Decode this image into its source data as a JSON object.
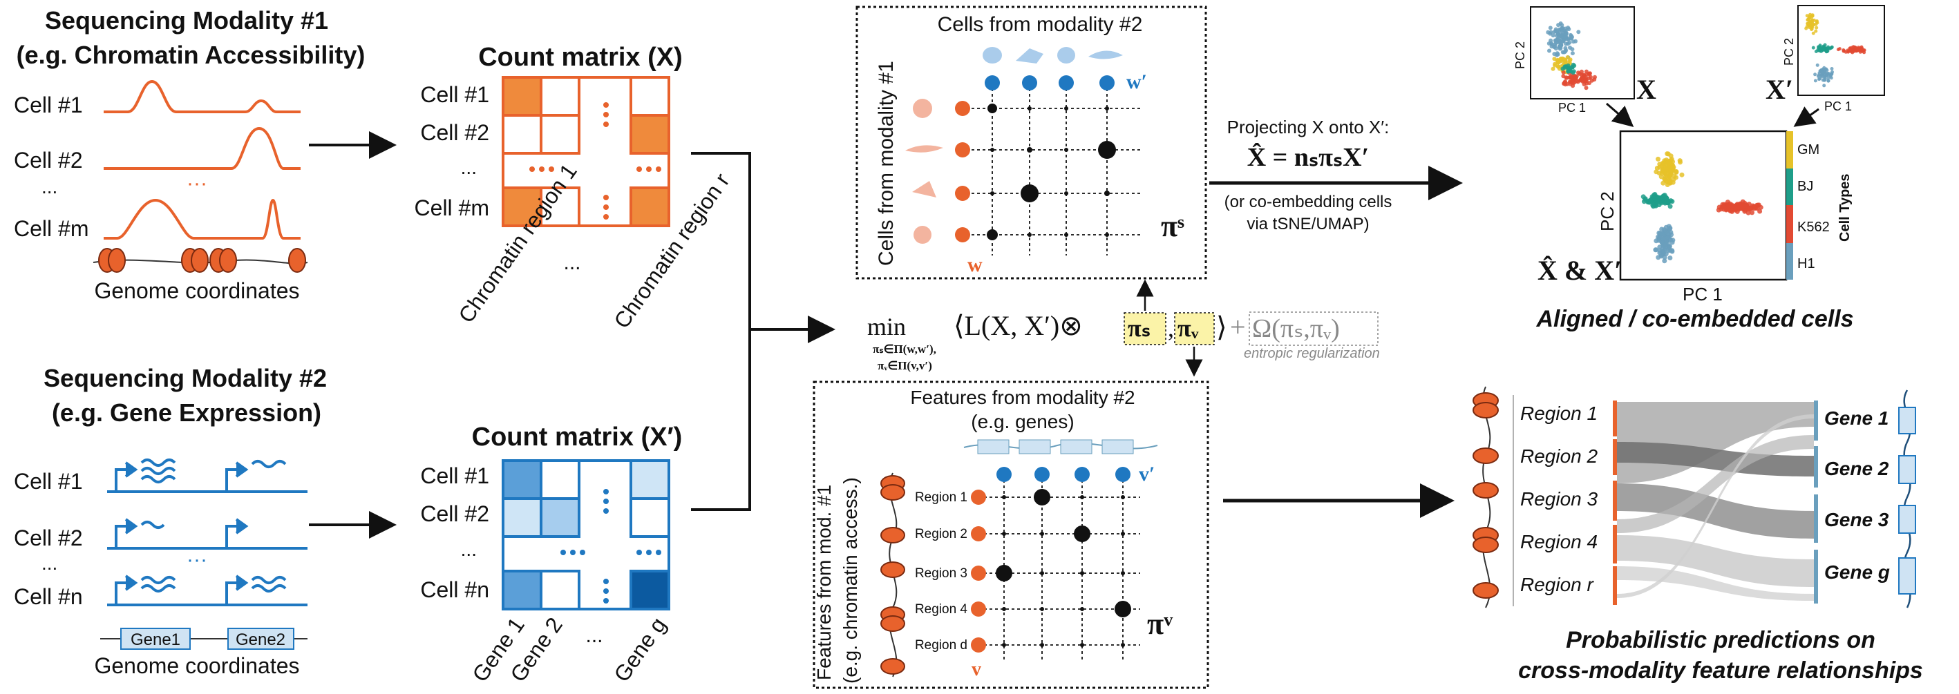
{
  "colors": {
    "orange": "#e8622c",
    "blue": "#1f78c1",
    "dark": "#111111",
    "gm": "#e6c229",
    "bj": "#1f9e89",
    "k562": "#e24a33",
    "h1": "#6a9fbd"
  },
  "mod1": {
    "title": "Sequencing Modality #1",
    "subtitle": "(e.g. Chromatin Accessibility)",
    "cells": [
      "Cell #1",
      "Cell #2",
      "...",
      "Cell #m"
    ],
    "genome_label": "Genome coordinates"
  },
  "mod2": {
    "title": "Sequencing Modality #2",
    "subtitle": "(e.g. Gene Expression)",
    "cells": [
      "Cell #1",
      "Cell #2",
      "...",
      "Cell #n"
    ],
    "genes": [
      "Gene1",
      "Gene2"
    ],
    "genome_label": "Genome coordinates"
  },
  "matrix_x": {
    "title": "Count matrix (X)",
    "rows": [
      "Cell #1",
      "Cell #2",
      "...",
      "Cell #m"
    ],
    "cols": [
      "Chromatin region 1",
      "...",
      "Chromatin region r"
    ]
  },
  "matrix_xp": {
    "title": "Count matrix (X′)",
    "rows": [
      "Cell #1",
      "Cell #2",
      "...",
      "Cell #n"
    ],
    "cols": [
      "Gene 1",
      "Gene 2",
      "...",
      "Gene g"
    ]
  },
  "cells_box": {
    "title": "Cells from modality #2",
    "side": "Cells from modality #1",
    "w": "w",
    "wp": "w′",
    "pi": "πˢ"
  },
  "features_box": {
    "title": "Features from modality #2",
    "subtitle": "(e.g. genes)",
    "side1": "Features from mod. #1",
    "side2": "(e.g. chromatin access.)",
    "regions": [
      "Region 1",
      "Region 2",
      "Region 3",
      "Region 4",
      "Region d"
    ],
    "v": "v",
    "vp": "v′",
    "pi": "πᵛ"
  },
  "objective": {
    "min": "min",
    "sub1": "πₛ∈Π(w,w′),",
    "sub2": "πᵥ∈Π(v,v′)",
    "expr": "⟨L(X, X′)⊗",
    "pis": "πₛ",
    "piv": "πᵥ",
    "close": "⟩",
    "plus": "+",
    "omega": "Ω(πₛ,πᵥ)",
    "reg": "entropic regularization"
  },
  "projection": {
    "line1": "Projecting X onto X′:",
    "formula": "X̂ = nₛπₛX′",
    "line3": "(or co-embedding cells",
    "line4": "via tSNE/UMAP)"
  },
  "plots": {
    "x_label": "X",
    "xp_label": "X′",
    "pc1": "PC 1",
    "pc2": "PC 2",
    "combo_label": "X̂ & X′",
    "legend_title": "Cell Types",
    "legend": [
      "GM",
      "BJ",
      "K562",
      "H1"
    ],
    "caption": "Aligned / co-embedded cells"
  },
  "sankey": {
    "regions": [
      "Region 1",
      "Region 2",
      "Region 3",
      "Region 4",
      "Region r"
    ],
    "genes": [
      "Gene 1",
      "Gene 2",
      "Gene 3",
      "Gene g"
    ],
    "caption1": "Probabilistic predictions on",
    "caption2": "cross-modality feature relationships"
  }
}
